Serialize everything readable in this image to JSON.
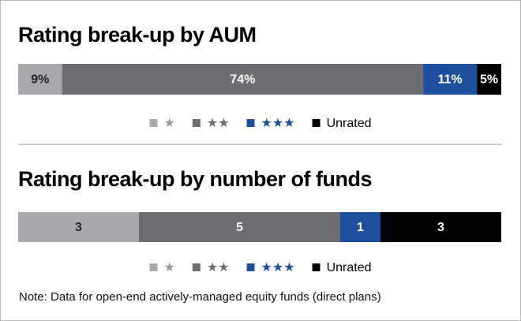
{
  "chart_data": [
    {
      "type": "stacked-bar",
      "title": "Rating break-up by AUM",
      "series": [
        {
          "name": "★",
          "color": "#a7a9ac",
          "values": [
            9
          ],
          "value_labels": [
            "9%"
          ]
        },
        {
          "name": "★★",
          "color": "#6d6e71",
          "values": [
            74
          ],
          "value_labels": [
            "74%"
          ]
        },
        {
          "name": "★★★",
          "color": "#1d4f9e",
          "values": [
            11
          ],
          "value_labels": [
            "11%"
          ]
        },
        {
          "name": "Unrated",
          "color": "#000000",
          "values": [
            5
          ],
          "value_labels": [
            "5%"
          ]
        }
      ]
    },
    {
      "type": "stacked-bar",
      "title": "Rating break-up by number of funds",
      "series": [
        {
          "name": "★",
          "color": "#a7a9ac",
          "values": [
            3
          ]
        },
        {
          "name": "★★",
          "color": "#6d6e71",
          "values": [
            5
          ]
        },
        {
          "name": "★★★",
          "color": "#1d4f9e",
          "values": [
            1
          ]
        },
        {
          "name": "Unrated",
          "color": "#000000",
          "values": [
            3
          ]
        }
      ]
    }
  ],
  "note": "Note: Data for open-end actively-managed equity funds (direct plans)"
}
